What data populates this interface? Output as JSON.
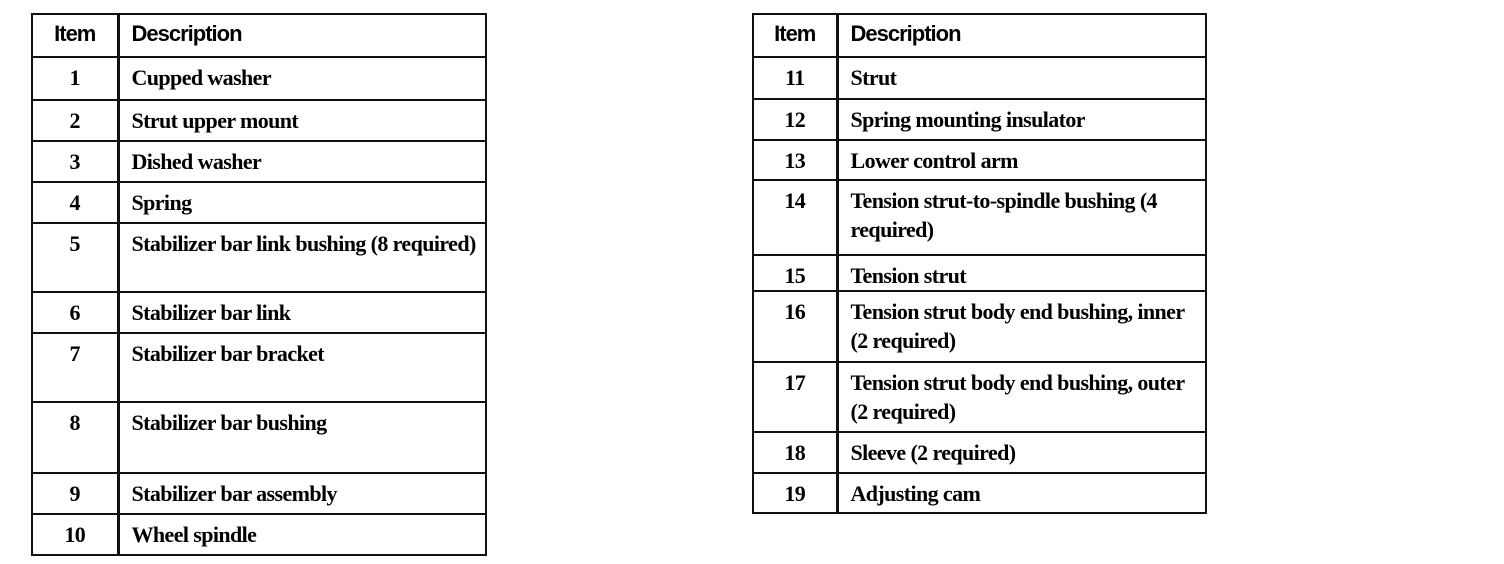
{
  "tables": [
    {
      "headers": {
        "item": "Item",
        "description": "Description"
      },
      "rows": [
        {
          "item": "1",
          "description": "Cupped washer"
        },
        {
          "item": "2",
          "description": "Strut upper mount"
        },
        {
          "item": "3",
          "description": "Dished washer"
        },
        {
          "item": "4",
          "description": "Spring"
        },
        {
          "item": "5",
          "description": "Stabilizer bar link bushing (8 required)"
        },
        {
          "item": "6",
          "description": "Stabilizer bar link"
        },
        {
          "item": "7",
          "description": "Stabilizer bar bracket"
        },
        {
          "item": "8",
          "description": "Stabilizer bar bushing"
        },
        {
          "item": "9",
          "description": "Stabilizer bar assembly"
        },
        {
          "item": "10",
          "description": "Wheel spindle"
        }
      ]
    },
    {
      "headers": {
        "item": "Item",
        "description": "Description"
      },
      "rows": [
        {
          "item": "11",
          "description": "Strut"
        },
        {
          "item": "12",
          "description": "Spring mounting insulator"
        },
        {
          "item": "13",
          "description": "Lower control arm"
        },
        {
          "item": "14",
          "description": "Tension strut-to-spindle bushing (4 required)"
        },
        {
          "item": "15",
          "description": "Tension strut"
        },
        {
          "item": "16",
          "description": "Tension strut body end bushing, inner (2 required)"
        },
        {
          "item": "17",
          "description": "Tension strut body end bushing, outer (2 required)"
        },
        {
          "item": "18",
          "description": "Sleeve (2 required)"
        },
        {
          "item": "19",
          "description": "Adjusting cam"
        }
      ]
    }
  ]
}
